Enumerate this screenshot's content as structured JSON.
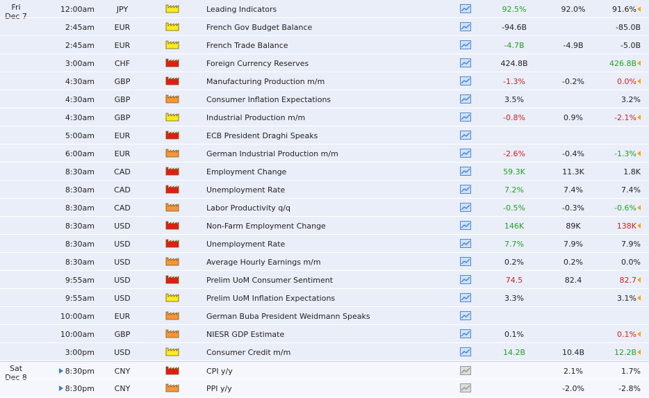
{
  "days": [
    {
      "day": "Fri",
      "date": "Dec 7"
    },
    {
      "day": "Sat",
      "date": "Dec 8"
    }
  ],
  "colors": {
    "positive": "#21a121",
    "negative": "#d21e1e",
    "neutral": "#222222",
    "impact_high": "#e41b17",
    "impact_medium": "#f7943d",
    "impact_low": "#f7ec1e"
  },
  "icons": {
    "detail": "detail-chart-icon",
    "impact": "factory-impact-icon",
    "revised": "revised-arrow-icon",
    "upcoming": "play-arrow-icon"
  },
  "events": [
    {
      "day": 0,
      "time": "12:00am",
      "currency": "JPY",
      "impact": "low",
      "title": "Leading Indicators",
      "actual": "92.5%",
      "actual_class": "pos",
      "forecast": "92.0%",
      "previous": "91.6%",
      "previous_class": "neu",
      "revised": true
    },
    {
      "day": 0,
      "time": "2:45am",
      "currency": "EUR",
      "impact": "low",
      "title": "French Gov Budget Balance",
      "actual": "-94.6B",
      "actual_class": "neu",
      "forecast": "",
      "previous": "-85.0B",
      "previous_class": "neu",
      "revised": false
    },
    {
      "day": 0,
      "time": "2:45am",
      "currency": "EUR",
      "impact": "low",
      "title": "French Trade Balance",
      "actual": "-4.7B",
      "actual_class": "pos",
      "forecast": "-4.9B",
      "previous": "-5.0B",
      "previous_class": "neu",
      "revised": false
    },
    {
      "day": 0,
      "time": "3:00am",
      "currency": "CHF",
      "impact": "high",
      "title": "Foreign Currency Reserves",
      "actual": "424.8B",
      "actual_class": "neu",
      "forecast": "",
      "previous": "426.8B",
      "previous_class": "pos",
      "revised": true
    },
    {
      "day": 0,
      "time": "4:30am",
      "currency": "GBP",
      "impact": "high",
      "title": "Manufacturing Production m/m",
      "actual": "-1.3%",
      "actual_class": "neg",
      "forecast": "-0.2%",
      "previous": "0.0%",
      "previous_class": "neg",
      "revised": true
    },
    {
      "day": 0,
      "time": "4:30am",
      "currency": "GBP",
      "impact": "medium",
      "title": "Consumer Inflation Expectations",
      "actual": "3.5%",
      "actual_class": "neu",
      "forecast": "",
      "previous": "3.2%",
      "previous_class": "neu",
      "revised": false
    },
    {
      "day": 0,
      "time": "4:30am",
      "currency": "GBP",
      "impact": "low",
      "title": "Industrial Production m/m",
      "actual": "-0.8%",
      "actual_class": "neg",
      "forecast": "0.9%",
      "previous": "-2.1%",
      "previous_class": "neg",
      "revised": true
    },
    {
      "day": 0,
      "time": "5:00am",
      "currency": "EUR",
      "impact": "high",
      "title": "ECB President Draghi Speaks",
      "actual": "",
      "actual_class": "neu",
      "forecast": "",
      "previous": "",
      "previous_class": "neu",
      "revised": false
    },
    {
      "day": 0,
      "time": "6:00am",
      "currency": "EUR",
      "impact": "medium",
      "title": "German Industrial Production m/m",
      "actual": "-2.6%",
      "actual_class": "neg",
      "forecast": "-0.4%",
      "previous": "-1.3%",
      "previous_class": "pos",
      "revised": true
    },
    {
      "day": 0,
      "time": "8:30am",
      "currency": "CAD",
      "impact": "high",
      "title": "Employment Change",
      "actual": "59.3K",
      "actual_class": "pos",
      "forecast": "11.3K",
      "previous": "1.8K",
      "previous_class": "neu",
      "revised": false
    },
    {
      "day": 0,
      "time": "8:30am",
      "currency": "CAD",
      "impact": "high",
      "title": "Unemployment Rate",
      "actual": "7.2%",
      "actual_class": "pos",
      "forecast": "7.4%",
      "previous": "7.4%",
      "previous_class": "neu",
      "revised": false
    },
    {
      "day": 0,
      "time": "8:30am",
      "currency": "CAD",
      "impact": "medium",
      "title": "Labor Productivity q/q",
      "actual": "-0.5%",
      "actual_class": "pos",
      "forecast": "-0.3%",
      "previous": "-0.6%",
      "previous_class": "pos",
      "revised": true
    },
    {
      "day": 0,
      "time": "8:30am",
      "currency": "USD",
      "impact": "high",
      "title": "Non-Farm Employment Change",
      "actual": "146K",
      "actual_class": "pos",
      "forecast": "89K",
      "previous": "138K",
      "previous_class": "neg",
      "revised": true
    },
    {
      "day": 0,
      "time": "8:30am",
      "currency": "USD",
      "impact": "high",
      "title": "Unemployment Rate",
      "actual": "7.7%",
      "actual_class": "pos",
      "forecast": "7.9%",
      "previous": "7.9%",
      "previous_class": "neu",
      "revised": false
    },
    {
      "day": 0,
      "time": "8:30am",
      "currency": "USD",
      "impact": "medium",
      "title": "Average Hourly Earnings m/m",
      "actual": "0.2%",
      "actual_class": "neu",
      "forecast": "0.2%",
      "previous": "0.0%",
      "previous_class": "neu",
      "revised": false
    },
    {
      "day": 0,
      "time": "9:55am",
      "currency": "USD",
      "impact": "high",
      "title": "Prelim UoM Consumer Sentiment",
      "actual": "74.5",
      "actual_class": "neg",
      "forecast": "82.4",
      "previous": "82.7",
      "previous_class": "neg",
      "revised": true
    },
    {
      "day": 0,
      "time": "9:55am",
      "currency": "USD",
      "impact": "low",
      "title": "Prelim UoM Inflation Expectations",
      "actual": "3.3%",
      "actual_class": "neu",
      "forecast": "",
      "previous": "3.1%",
      "previous_class": "neu",
      "revised": true
    },
    {
      "day": 0,
      "time": "10:00am",
      "currency": "EUR",
      "impact": "medium",
      "title": "German Buba President Weidmann Speaks",
      "actual": "",
      "actual_class": "neu",
      "forecast": "",
      "previous": "",
      "previous_class": "neu",
      "revised": false
    },
    {
      "day": 0,
      "time": "10:00am",
      "currency": "GBP",
      "impact": "medium",
      "title": "NIESR GDP Estimate",
      "actual": "0.1%",
      "actual_class": "neu",
      "forecast": "",
      "previous": "0.1%",
      "previous_class": "neg",
      "revised": true
    },
    {
      "day": 0,
      "time": "3:00pm",
      "currency": "USD",
      "impact": "low",
      "title": "Consumer Credit m/m",
      "actual": "14.2B",
      "actual_class": "pos",
      "forecast": "10.4B",
      "previous": "12.2B",
      "previous_class": "pos",
      "revised": true
    },
    {
      "day": 1,
      "time": "8:30pm",
      "currency": "CNY",
      "impact": "high",
      "title": "CPI y/y",
      "actual": "",
      "actual_class": "neu",
      "forecast": "2.1%",
      "previous": "1.7%",
      "previous_class": "neu",
      "revised": false,
      "upcoming": true
    },
    {
      "day": 1,
      "time": "8:30pm",
      "currency": "CNY",
      "impact": "medium",
      "title": "PPI y/y",
      "actual": "",
      "actual_class": "neu",
      "forecast": "-2.0%",
      "previous": "-2.8%",
      "previous_class": "neu",
      "revised": false,
      "upcoming": true
    }
  ]
}
